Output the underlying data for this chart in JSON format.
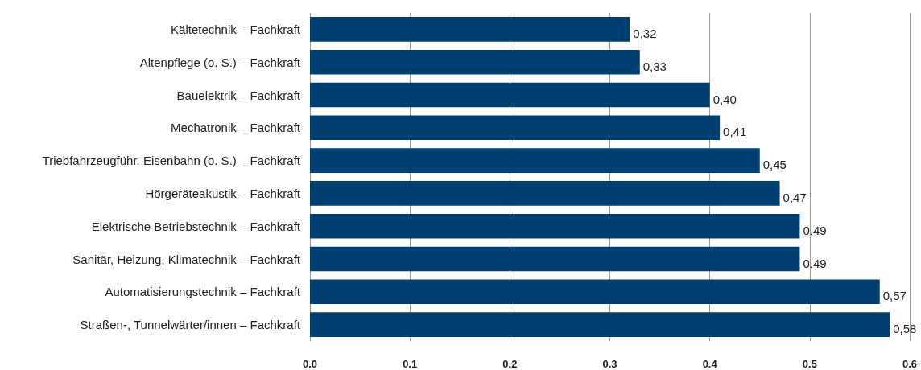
{
  "chart_data": {
    "type": "bar",
    "orientation": "horizontal",
    "categories": [
      "Kältetechnik – Fachkraft",
      "Altenpflege (o. S.) – Fachkraft",
      "Bauelektrik – Fachkraft",
      "Mechatronik – Fachkraft",
      "Triebfahrzeugführ. Eisenbahn (o. S.) – Fachkraft",
      "Hörgeräteakustik – Fachkraft",
      "Elektrische Betriebstechnik – Fachkraft",
      "Sanitär, Heizung, Klimatechnik – Fachkraft",
      "Automatisierungstechnik – Fachkraft",
      "Straßen-, Tunnelwärter/innen – Fachkraft"
    ],
    "values": [
      0.32,
      0.33,
      0.4,
      0.41,
      0.45,
      0.47,
      0.49,
      0.49,
      0.57,
      0.58
    ],
    "value_labels": [
      "0,32",
      "0,33",
      "0,40",
      "0,41",
      "0,45",
      "0,47",
      "0,49",
      "0,49",
      "0,57",
      "0,58"
    ],
    "color": "#003f72",
    "xlim": [
      0,
      0.6
    ],
    "xticks": [
      {
        "value": 0,
        "label": "0.0"
      },
      0.1,
      0.2,
      0.3,
      0.4,
      0.5,
      0.6
    ],
    "grid": "x"
  }
}
